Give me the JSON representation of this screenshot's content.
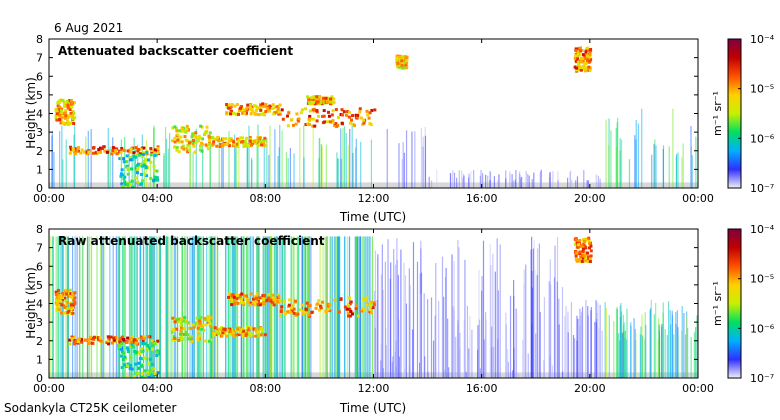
{
  "date": "6 Aug 2021",
  "footer": "Sodankyla CT25K ceilometer",
  "colorbar": {
    "unit_label": "m⁻¹ sr⁻¹",
    "ticks": [
      "10⁻⁴",
      "10⁻⁵",
      "10⁻⁶",
      "10⁻⁷"
    ],
    "scale": "log",
    "range": [
      1e-07,
      0.0001
    ],
    "colors": [
      "#f0f0f8",
      "#3030ff",
      "#00b0ff",
      "#00e060",
      "#c8f000",
      "#ffd000",
      "#ff5000",
      "#c00000",
      "#800040"
    ]
  },
  "chart_data": [
    {
      "type": "heatmap",
      "title": "Attenuated backscatter coefficient",
      "xlabel": "Time (UTC)",
      "ylabel": "Height (km)",
      "xticks": [
        "00:00",
        "04:00",
        "08:00",
        "12:00",
        "16:00",
        "20:00",
        "00:00"
      ],
      "xlim_hours": [
        0,
        24
      ],
      "yticks": [
        "0",
        "1",
        "2",
        "3",
        "4",
        "5",
        "6",
        "7",
        "8"
      ],
      "ylim_km": [
        0,
        8
      ],
      "features": [
        {
          "t": [
            0.2,
            0.9
          ],
          "h": [
            3.5,
            4.8
          ],
          "level": 0.82
        },
        {
          "t": [
            0.7,
            4.0
          ],
          "h": [
            1.9,
            2.3
          ],
          "level": 0.9
        },
        {
          "t": [
            2.5,
            4.0
          ],
          "h": [
            0.0,
            2.0
          ],
          "level": 0.55
        },
        {
          "t": [
            4.5,
            6.0
          ],
          "h": [
            2.0,
            3.4
          ],
          "level": 0.75
        },
        {
          "t": [
            6.0,
            8.0
          ],
          "h": [
            2.3,
            2.8
          ],
          "level": 0.8
        },
        {
          "t": [
            6.5,
            8.5
          ],
          "h": [
            4.0,
            4.6
          ],
          "level": 0.85
        },
        {
          "t": [
            8.5,
            12.0
          ],
          "h": [
            3.4,
            4.4
          ],
          "level": 0.88
        },
        {
          "t": [
            9.5,
            10.5
          ],
          "h": [
            4.6,
            5.0
          ],
          "level": 0.8
        },
        {
          "t": [
            12.8,
            13.2
          ],
          "h": [
            6.5,
            7.2
          ],
          "level": 0.75
        },
        {
          "t": [
            19.4,
            20.0
          ],
          "h": [
            6.3,
            7.6
          ],
          "level": 0.85
        }
      ]
    },
    {
      "type": "heatmap",
      "title": "Raw attenuated backscatter coefficient",
      "xlabel": "Time (UTC)",
      "ylabel": "Height (km)",
      "xticks": [
        "00:00",
        "04:00",
        "08:00",
        "12:00",
        "16:00",
        "20:00",
        "00:00"
      ],
      "xlim_hours": [
        0,
        24
      ],
      "yticks": [
        "0",
        "1",
        "2",
        "3",
        "4",
        "5",
        "6",
        "7",
        "8"
      ],
      "ylim_km": [
        0,
        8
      ],
      "features": [
        {
          "t": [
            0.2,
            0.9
          ],
          "h": [
            3.5,
            4.8
          ],
          "level": 0.82
        },
        {
          "t": [
            0.7,
            4.0
          ],
          "h": [
            1.9,
            2.3
          ],
          "level": 0.9
        },
        {
          "t": [
            2.5,
            4.0
          ],
          "h": [
            0.0,
            2.0
          ],
          "level": 0.55
        },
        {
          "t": [
            4.5,
            6.0
          ],
          "h": [
            2.0,
            3.4
          ],
          "level": 0.75
        },
        {
          "t": [
            6.0,
            8.0
          ],
          "h": [
            2.3,
            2.8
          ],
          "level": 0.8
        },
        {
          "t": [
            6.5,
            8.5
          ],
          "h": [
            4.0,
            4.6
          ],
          "level": 0.85
        },
        {
          "t": [
            8.5,
            12.0
          ],
          "h": [
            3.4,
            4.4
          ],
          "level": 0.88
        },
        {
          "t": [
            19.4,
            20.0
          ],
          "h": [
            6.3,
            7.6
          ],
          "level": 0.85
        }
      ]
    }
  ]
}
